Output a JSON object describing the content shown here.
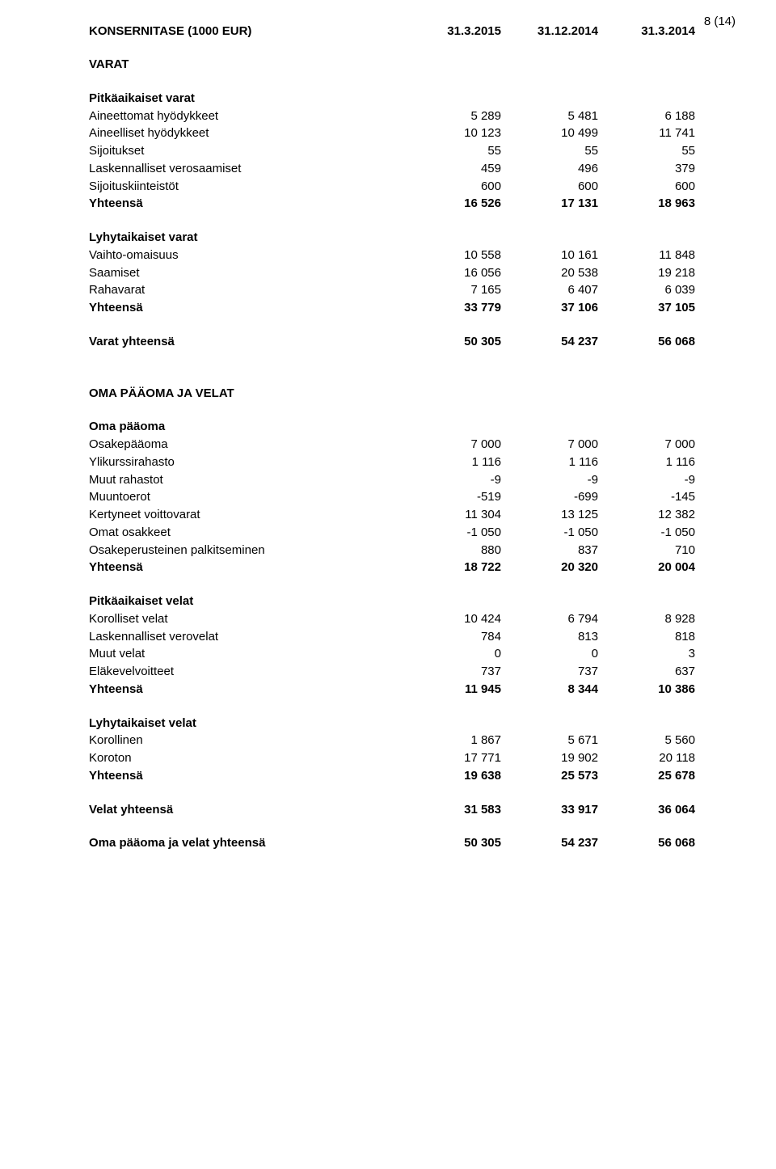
{
  "page_number": "8 (14)",
  "title": "KONSERNITASE (1000 EUR)",
  "columns": [
    "31.3.2015",
    "31.12.2014",
    "31.3.2014"
  ],
  "varat_heading": "VARAT",
  "pitkaaikaiset_varat_heading": "Pitkäaikaiset varat",
  "pitkaaikaiset_varat": [
    {
      "label": "Aineettomat hyödykkeet",
      "vals": [
        "5 289",
        "5 481",
        "6 188"
      ]
    },
    {
      "label": "Aineelliset hyödykkeet",
      "vals": [
        "10 123",
        "10 499",
        "11 741"
      ]
    },
    {
      "label": "Sijoitukset",
      "vals": [
        "55",
        "55",
        "55"
      ]
    },
    {
      "label": "Laskennalliset verosaamiset",
      "vals": [
        "459",
        "496",
        "379"
      ]
    },
    {
      "label": "Sijoituskiinteistöt",
      "vals": [
        "600",
        "600",
        "600"
      ]
    }
  ],
  "pitkaaikaiset_varat_yhteensa": {
    "label": "Yhteensä",
    "vals": [
      "16 526",
      "17 131",
      "18 963"
    ]
  },
  "lyhytaikaiset_varat_heading": "Lyhytaikaiset varat",
  "lyhytaikaiset_varat": [
    {
      "label": "Vaihto-omaisuus",
      "vals": [
        "10 558",
        "10 161",
        "11 848"
      ]
    },
    {
      "label": "Saamiset",
      "vals": [
        "16 056",
        "20 538",
        "19 218"
      ]
    },
    {
      "label": "Rahavarat",
      "vals": [
        "7 165",
        "6 407",
        "6 039"
      ]
    }
  ],
  "lyhytaikaiset_varat_yhteensa": {
    "label": "Yhteensä",
    "vals": [
      "33 779",
      "37 106",
      "37 105"
    ]
  },
  "varat_yhteensa": {
    "label": "Varat yhteensä",
    "vals": [
      "50 305",
      "54 237",
      "56 068"
    ]
  },
  "oma_paaoma_ja_velat_heading": "OMA PÄÄOMA JA VELAT",
  "oma_paaoma_heading": "Oma pääoma",
  "oma_paaoma": [
    {
      "label": "Osakepääoma",
      "vals": [
        "7 000",
        "7 000",
        "7 000"
      ]
    },
    {
      "label": "Ylikurssirahasto",
      "vals": [
        "1 116",
        "1 116",
        "1 116"
      ]
    },
    {
      "label": "Muut rahastot",
      "vals": [
        "-9",
        "-9",
        "-9"
      ]
    },
    {
      "label": "Muuntoerot",
      "vals": [
        "-519",
        "-699",
        "-145"
      ]
    },
    {
      "label": "Kertyneet voittovarat",
      "vals": [
        "11 304",
        "13 125",
        "12 382"
      ]
    },
    {
      "label": "Omat osakkeet",
      "vals": [
        "-1 050",
        "-1 050",
        "-1 050"
      ]
    },
    {
      "label": "Osakeperusteinen palkitseminen",
      "vals": [
        "880",
        "837",
        "710"
      ]
    }
  ],
  "oma_paaoma_yhteensa": {
    "label": "Yhteensä",
    "vals": [
      "18 722",
      "20 320",
      "20 004"
    ]
  },
  "pitkaaikaiset_velat_heading": "Pitkäaikaiset velat",
  "pitkaaikaiset_velat": [
    {
      "label": "Korolliset velat",
      "vals": [
        "10 424",
        "6 794",
        "8 928"
      ]
    },
    {
      "label": "Laskennalliset verovelat",
      "vals": [
        "784",
        "813",
        "818"
      ]
    },
    {
      "label": "Muut velat",
      "vals": [
        "0",
        "0",
        "3"
      ]
    },
    {
      "label": "Eläkevelvoitteet",
      "vals": [
        "737",
        "737",
        "637"
      ]
    }
  ],
  "pitkaaikaiset_velat_yhteensa": {
    "label": "Yhteensä",
    "vals": [
      "11 945",
      "8 344",
      "10 386"
    ]
  },
  "lyhytaikaiset_velat_heading": "Lyhytaikaiset velat",
  "lyhytaikaiset_velat": [
    {
      "label": "Korollinen",
      "vals": [
        "1 867",
        "5 671",
        "5 560"
      ]
    },
    {
      "label": "Koroton",
      "vals": [
        "17 771",
        "19 902",
        "20 118"
      ]
    }
  ],
  "lyhytaikaiset_velat_yhteensa": {
    "label": "Yhteensä",
    "vals": [
      "19 638",
      "25 573",
      "25 678"
    ]
  },
  "velat_yhteensa": {
    "label": "Velat yhteensä",
    "vals": [
      "31 583",
      "33 917",
      "36 064"
    ]
  },
  "oma_paaoma_ja_velat_yhteensa": {
    "label": "Oma pääoma ja velat yhteensä",
    "vals": [
      "50 305",
      "54 237",
      "56 068"
    ]
  }
}
